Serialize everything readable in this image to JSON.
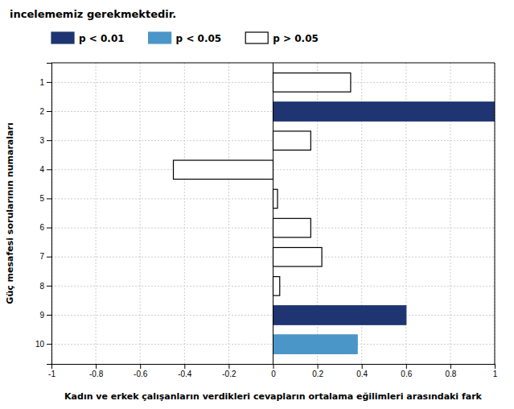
{
  "chart_data": {
    "type": "bar",
    "orientation": "horizontal",
    "stacked": true,
    "title": "incelememiz gerekmektedir.",
    "xlabel": "Kadın ve erkek çalışanların verdikleri cevapların ortalama eğilimleri arasındaki fark",
    "ylabel": "Güç mesafesi sorularının numaraları",
    "categories": [
      "1",
      "2",
      "3",
      "4",
      "5",
      "6",
      "7",
      "8",
      "9",
      "10"
    ],
    "series": [
      {
        "name": "p < 0.01",
        "color": "#1f3572",
        "values": [
          null,
          1.0,
          null,
          null,
          null,
          null,
          null,
          null,
          0.6,
          null
        ]
      },
      {
        "name": "p < 0.05",
        "color": "#4b96c8",
        "values": [
          null,
          null,
          null,
          null,
          null,
          null,
          null,
          null,
          null,
          0.38
        ]
      },
      {
        "name": "p > 0.05",
        "color": "white",
        "values": [
          0.35,
          null,
          0.17,
          -0.45,
          0.02,
          0.17,
          0.22,
          0.03,
          null,
          null
        ]
      }
    ],
    "xlim": [
      -1.0,
      1.0
    ],
    "xticks": [
      -1.0,
      -0.8,
      -0.6,
      -0.4,
      -0.2,
      0.0,
      0.2,
      0.4,
      0.6,
      0.8,
      1.0
    ],
    "grid": true,
    "legend": "top"
  }
}
